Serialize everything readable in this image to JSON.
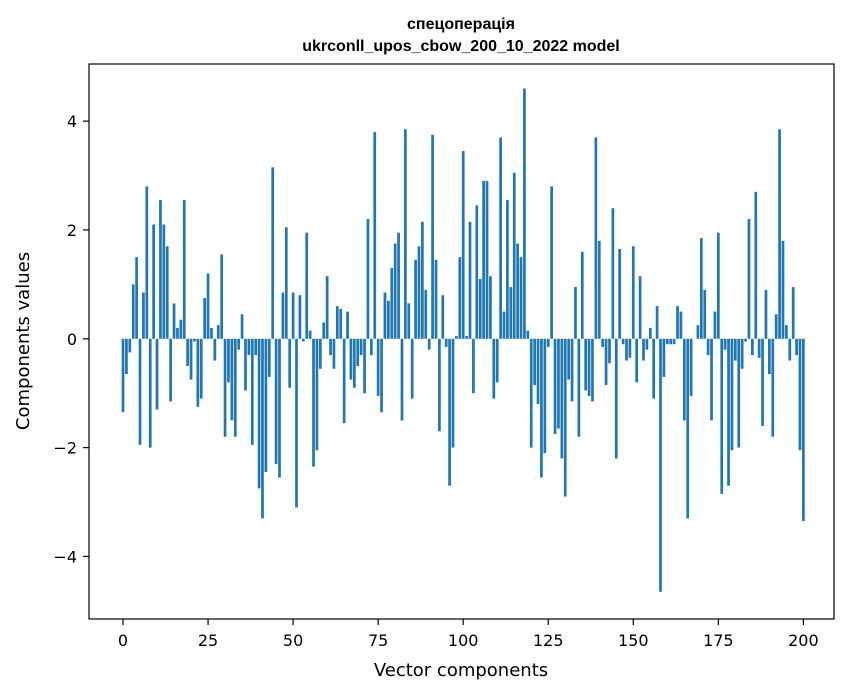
{
  "chart_data": {
    "type": "bar",
    "title": "спецоперація",
    "subtitle": "ukrconll_upos_cbow_200_10_2022 model",
    "xlabel": "Vector components",
    "ylabel": "Components values",
    "xlim": [
      -10,
      209
    ],
    "ylim": [
      -5.15,
      5.05
    ],
    "xticks": [
      0,
      25,
      50,
      75,
      100,
      125,
      150,
      175,
      200
    ],
    "yticks": [
      -4,
      -2,
      0,
      2,
      4
    ],
    "grid": false,
    "legend": "none",
    "bar_color": "#1f77b4",
    "values": [
      -1.35,
      -0.65,
      -0.25,
      1.0,
      1.5,
      -1.95,
      0.85,
      2.8,
      -2.0,
      2.1,
      -1.3,
      2.55,
      2.1,
      1.7,
      -1.15,
      0.65,
      0.2,
      0.35,
      2.55,
      -0.5,
      -0.75,
      -0.05,
      -1.25,
      -1.1,
      0.75,
      1.2,
      0.2,
      -0.4,
      0.25,
      1.55,
      -1.8,
      -0.8,
      -1.5,
      -1.8,
      -0.2,
      0.45,
      -0.95,
      -0.3,
      -1.95,
      -0.3,
      -2.75,
      -3.3,
      -2.45,
      -0.7,
      3.15,
      -2.3,
      -2.55,
      0.85,
      2.05,
      -0.9,
      0.85,
      -3.1,
      0.8,
      -0.05,
      1.95,
      0.15,
      -2.35,
      -2.05,
      -0.55,
      0.3,
      1.15,
      -0.3,
      -0.55,
      0.6,
      0.55,
      -1.55,
      0.5,
      -0.75,
      -0.9,
      -0.5,
      -0.3,
      -1.0,
      2.2,
      -0.3,
      3.8,
      -1.05,
      -1.35,
      0.85,
      0.7,
      1.3,
      1.75,
      1.95,
      -1.5,
      3.85,
      0.65,
      -1.1,
      1.45,
      1.7,
      2.15,
      0.9,
      -0.2,
      3.75,
      1.45,
      -1.7,
      0.8,
      -0.15,
      -2.7,
      -2.0,
      0.05,
      1.5,
      3.45,
      0.05,
      2.15,
      -1.0,
      2.45,
      1.1,
      2.9,
      2.9,
      1.15,
      -1.1,
      -0.8,
      3.7,
      0.5,
      2.55,
      0.95,
      3.05,
      1.75,
      1.5,
      4.6,
      0.15,
      -2.0,
      -0.85,
      -1.2,
      -2.55,
      -2.1,
      -0.15,
      2.8,
      -1.75,
      -1.65,
      -2.2,
      -2.9,
      -0.75,
      -1.15,
      0.95,
      -1.8,
      1.6,
      -0.95,
      -1.05,
      -1.15,
      3.7,
      1.8,
      -0.15,
      -0.85,
      -0.45,
      2.4,
      -2.2,
      1.65,
      -0.1,
      -0.4,
      -0.35,
      1.7,
      -0.8,
      1.15,
      -0.4,
      -0.2,
      0.2,
      -1.1,
      0.6,
      -4.65,
      -0.7,
      -0.1,
      -0.1,
      -0.1,
      0.6,
      0.5,
      -1.5,
      -3.3,
      -1.05,
      0.0,
      0.25,
      1.85,
      0.9,
      -0.3,
      -1.5,
      0.5,
      1.95,
      -2.85,
      -0.2,
      -2.7,
      -2.05,
      -0.4,
      -2.0,
      -0.55,
      -0.05,
      2.2,
      -0.3,
      2.7,
      -0.35,
      -1.6,
      0.9,
      -0.65,
      -1.8,
      0.45,
      3.85,
      1.8,
      0.25,
      -0.4,
      0.95,
      -0.3,
      -2.05,
      -3.35
    ]
  }
}
